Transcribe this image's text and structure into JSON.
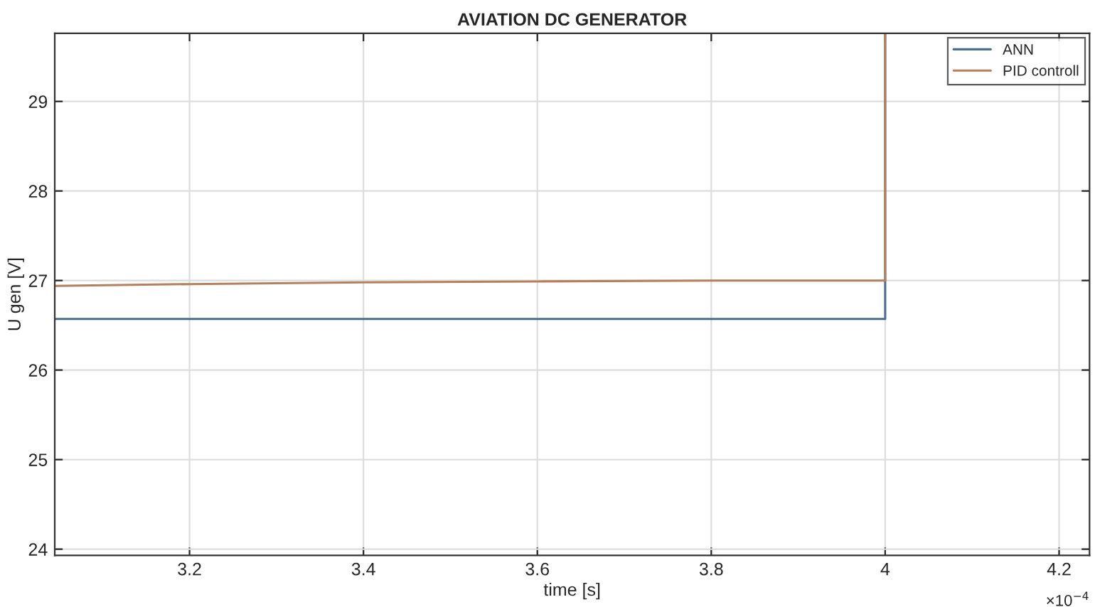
{
  "chart_data": {
    "type": "line",
    "title": "AVIATION DC GENERATOR",
    "xlabel": "time [s]",
    "ylabel": "U gen [V]",
    "series": [
      {
        "name": "ANN",
        "color": "#4a6e8e",
        "x": [
          3.045,
          4.0,
          4.0
        ],
        "values": [
          26.57,
          26.57,
          29.76
        ]
      },
      {
        "name": "PID controll",
        "color": "#b5805e",
        "x": [
          3.045,
          3.2,
          3.4,
          3.6,
          3.8,
          4.0,
          4.0
        ],
        "values": [
          26.94,
          26.96,
          26.98,
          26.99,
          27.0,
          27.0,
          29.76
        ]
      }
    ],
    "xlim": [
      3.045,
      4.235
    ],
    "xticks": [
      3.2,
      3.4,
      3.6,
      3.8,
      4,
      4.2
    ],
    "ylim": [
      23.93,
      29.76
    ],
    "yticks": [
      24,
      25,
      26,
      27,
      28,
      29
    ],
    "annotations": [
      "×10$^{−4}$"
    ],
    "grid": true,
    "legend": "top right",
    "line_style": "solid",
    "marker": "none"
  }
}
